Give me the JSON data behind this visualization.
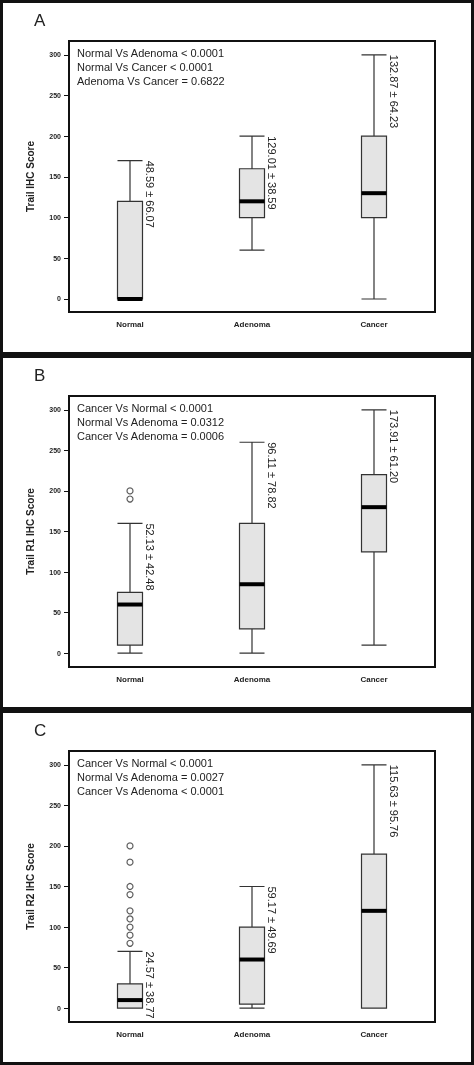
{
  "chart_data": [
    {
      "type": "box",
      "title": "A",
      "ylabel": "Trail IHC Score",
      "categories": [
        "Normal",
        "Adenoma",
        "Cancer"
      ],
      "color": "#e4e4e4",
      "ylim": [
        -16,
        317
      ],
      "yticks": [
        0,
        50,
        100,
        150,
        200,
        250,
        300
      ],
      "grid": false,
      "boxes": [
        {
          "low": 0,
          "q1": 0,
          "median": 0,
          "q3": 120,
          "high": 170
        },
        {
          "low": 60,
          "q1": 100,
          "median": 120,
          "q3": 160,
          "high": 200
        },
        {
          "low": 0,
          "q1": 100,
          "median": 130,
          "q3": 200,
          "high": 300
        }
      ],
      "annotations": [
        "Normal Vs Adenoma < 0.0001",
        "Normal Vs Cancer < 0.0001",
        "Adenoma Vs Cancer = 0.6822",
        "48.59 ± 66.07",
        "129.01 ± 38.59",
        "132.87 ± 64.23"
      ]
    },
    {
      "type": "box",
      "title": "B",
      "ylabel": "Trail R1 IHC Score",
      "categories": [
        "Normal",
        "Adenoma",
        "Cancer"
      ],
      "color": "#e4e4e4",
      "ylim": [
        -17,
        317
      ],
      "yticks": [
        0,
        50,
        100,
        150,
        200,
        250,
        300
      ],
      "grid": false,
      "boxes": [
        {
          "low": 0,
          "q1": 10,
          "median": 60,
          "q3": 75,
          "high": 160,
          "outliers": [
            190,
            200
          ]
        },
        {
          "low": 0,
          "q1": 30,
          "median": 85,
          "q3": 160,
          "high": 260
        },
        {
          "low": 10,
          "q1": 125,
          "median": 180,
          "q3": 220,
          "high": 300
        }
      ],
      "annotations": [
        "Cancer Vs Normal < 0.0001",
        "Normal Vs Adenoma = 0.0312",
        "Cancer Vs Adenoma = 0.0006",
        "52.13 ± 42.48",
        "96.11 ± 78.82",
        "173.91 ± 61.20"
      ]
    },
    {
      "type": "box",
      "title": "C",
      "ylabel": "Trail R2 IHC Score",
      "categories": [
        "Normal",
        "Adenoma",
        "Cancer"
      ],
      "color": "#e4e4e4",
      "ylim": [
        -17,
        317
      ],
      "yticks": [
        0,
        50,
        100,
        150,
        200,
        250,
        300
      ],
      "grid": false,
      "boxes": [
        {
          "low": 0,
          "q1": 0,
          "median": 10,
          "q3": 30,
          "high": 70,
          "outliers": [
            80,
            90,
            100,
            110,
            120,
            140,
            150,
            180,
            200
          ]
        },
        {
          "low": 0,
          "q1": 5,
          "median": 60,
          "q3": 100,
          "high": 150
        },
        {
          "low": 0,
          "q1": 0,
          "median": 120,
          "q3": 190,
          "high": 300
        }
      ],
      "annotations": [
        "Cancer Vs Normal < 0.0001",
        "Normal Vs Adenoma = 0.0027",
        "Cancer Vs Adenoma < 0.0001",
        "24.57 ± 38.77",
        "59.17 ± 49.69",
        "115.63 ± 95.76"
      ]
    }
  ]
}
